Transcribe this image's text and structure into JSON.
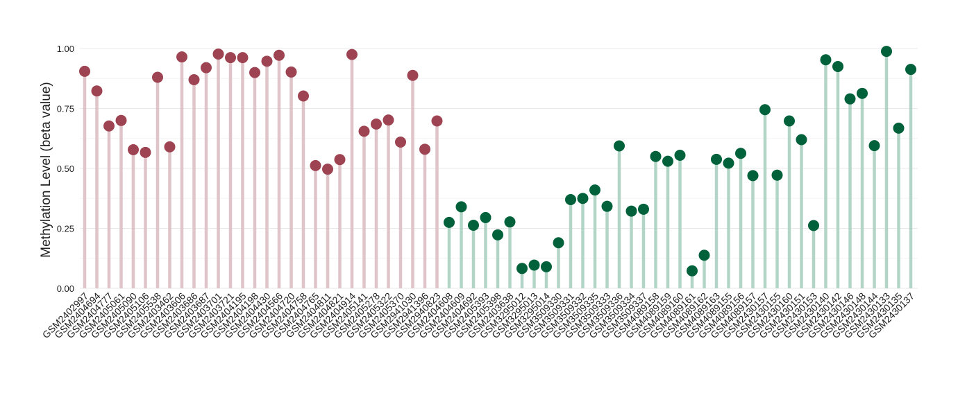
{
  "chart_data": {
    "type": "lollipop",
    "y_label": "Methylation Level (beta value)",
    "categories": [
      "GSM2402997",
      "GSM2404694",
      "GSM2404777",
      "GSM2405061",
      "GSM2405090",
      "GSM2405106",
      "GSM2405538",
      "GSM2403462",
      "GSM2403606",
      "GSM2403686",
      "GSM2403687",
      "GSM2403701",
      "GSM2403721",
      "GSM2404195",
      "GSM2404198",
      "GSM2404430",
      "GSM2404566",
      "GSM2404720",
      "GSM2404758",
      "GSM2404765",
      "GSM2404811",
      "GSM2404821",
      "GSM2404914",
      "GSM2405141",
      "GSM2405278",
      "GSM2405322",
      "GSM2405370",
      "GSM2941030",
      "GSM2941396",
      "GSM2940823",
      "GSM2404608",
      "GSM2404609",
      "GSM2404692",
      "GSM2405393",
      "GSM2405398",
      "GSM2403638",
      "GSM3295012",
      "GSM3295013",
      "GSM3295014",
      "GSM3509330",
      "GSM3509331",
      "GSM3509332",
      "GSM3509335",
      "GSM3509333",
      "GSM3509336",
      "GSM3509334",
      "GSM3509337",
      "GSM4089158",
      "GSM4089159",
      "GSM4089160",
      "GSM4089161",
      "GSM4089162",
      "GSM4089163",
      "GSM4089155",
      "GSM4089156",
      "GSM4089157",
      "GSM2430157",
      "GSM2430155",
      "GSM2430160",
      "GSM2430151",
      "GSM2430153",
      "GSM2430140",
      "GSM2430142",
      "GSM2430146",
      "GSM2430148",
      "GSM2430144",
      "GSM2430133",
      "GSM2430135",
      "GSM2430137"
    ],
    "series": [
      {
        "color": "#9e4352",
        "stem_color": "#dfc4c9",
        "values": [
          0.905,
          0.823,
          0.677,
          0.7,
          0.578,
          0.567,
          0.88,
          0.59,
          0.965,
          0.87,
          0.92,
          0.977,
          0.962,
          0.962,
          0.9,
          0.947,
          0.972,
          0.902,
          0.802,
          0.512,
          0.497,
          0.537,
          0.975,
          0.655,
          0.685,
          0.702,
          0.61,
          0.888,
          0.58,
          0.698,
          null,
          null,
          null,
          null,
          null,
          null,
          null,
          null,
          null,
          null,
          null,
          null,
          null,
          null,
          null,
          null,
          null,
          null,
          null,
          null,
          null,
          null,
          null,
          null,
          null,
          null,
          null,
          null,
          null,
          null,
          null,
          null,
          null,
          null,
          null,
          null,
          null,
          null,
          null
        ]
      },
      {
        "color": "#00613a",
        "stem_color": "#b2d5c7",
        "values": [
          null,
          null,
          null,
          null,
          null,
          null,
          null,
          null,
          null,
          null,
          null,
          null,
          null,
          null,
          null,
          null,
          null,
          null,
          null,
          null,
          null,
          null,
          null,
          null,
          null,
          null,
          null,
          null,
          null,
          null,
          0.275,
          0.34,
          0.263,
          0.295,
          0.223,
          0.277,
          0.083,
          0.097,
          0.09,
          0.19,
          0.37,
          0.375,
          0.41,
          0.342,
          0.594,
          0.322,
          0.33,
          0.55,
          0.53,
          0.555,
          0.073,
          0.138,
          0.538,
          0.522,
          0.563,
          0.47,
          0.745,
          0.472,
          0.698,
          0.62,
          0.262,
          0.953,
          0.925,
          0.79,
          0.813,
          0.595,
          0.988,
          0.668,
          0.913
        ]
      }
    ],
    "ylim": [
      -0.05,
      1.05
    ],
    "yticks": [
      {
        "value": 0,
        "label": "0.00"
      },
      {
        "value": 0.25,
        "label": "0.25"
      },
      {
        "value": 0.5,
        "label": "0.50"
      },
      {
        "value": 0.75,
        "label": "0.75"
      },
      {
        "value": 1,
        "label": "1.00"
      }
    ],
    "grid": true
  }
}
